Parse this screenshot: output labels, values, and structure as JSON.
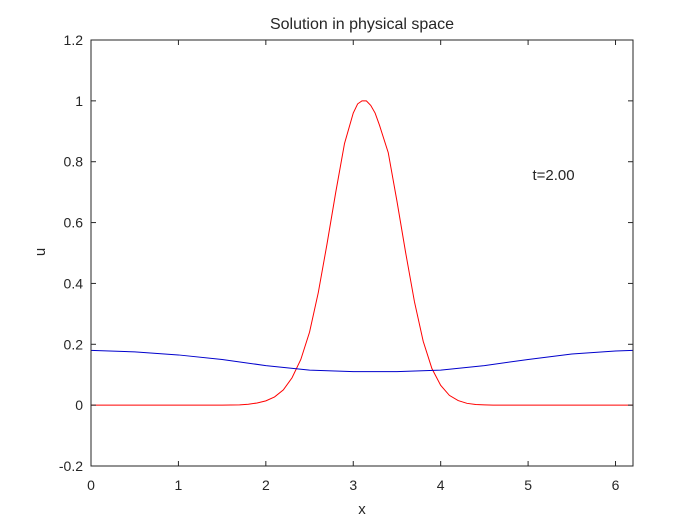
{
  "chart_data": {
    "type": "line",
    "title": "Solution in physical space",
    "xlabel": "x",
    "ylabel": "u",
    "xlim": [
      0,
      6.2
    ],
    "ylim": [
      -0.2,
      1.2
    ],
    "xticks": [
      0,
      1,
      2,
      3,
      4,
      5,
      6
    ],
    "yticks": [
      -0.2,
      0,
      0.2,
      0.4,
      0.6,
      0.8,
      1,
      1.2
    ],
    "xtick_labels": [
      "0",
      "1",
      "2",
      "3",
      "4",
      "5",
      "6"
    ],
    "ytick_labels": [
      "-0.2",
      "0",
      "0.2",
      "0.4",
      "0.6",
      "0.8",
      "1",
      "1.2"
    ],
    "grid": false,
    "annotation": {
      "text": "t=2.00",
      "x": 5.05,
      "y": 0.74
    },
    "series": [
      {
        "color": "#ff0000",
        "x": [
          0,
          0.5,
          1.0,
          1.5,
          1.7,
          1.8,
          1.9,
          2.0,
          2.1,
          2.2,
          2.3,
          2.4,
          2.5,
          2.6,
          2.7,
          2.8,
          2.9,
          3.0,
          3.05,
          3.1,
          3.15,
          3.2,
          3.25,
          3.3,
          3.4,
          3.5,
          3.6,
          3.7,
          3.8,
          3.9,
          4.0,
          4.1,
          4.2,
          4.3,
          4.4,
          4.5,
          4.6,
          4.8,
          5.0,
          5.5,
          6.0,
          6.2
        ],
        "y": [
          0,
          0,
          0,
          0,
          0.001,
          0.003,
          0.007,
          0.014,
          0.027,
          0.05,
          0.09,
          0.15,
          0.24,
          0.37,
          0.53,
          0.7,
          0.86,
          0.96,
          0.99,
          1.0,
          1.0,
          0.985,
          0.96,
          0.92,
          0.83,
          0.67,
          0.5,
          0.34,
          0.21,
          0.12,
          0.065,
          0.032,
          0.015,
          0.006,
          0.002,
          0.001,
          0,
          0,
          0,
          0,
          0,
          0
        ]
      },
      {
        "color": "#0000cc",
        "x": [
          0,
          0.5,
          1.0,
          1.5,
          2.0,
          2.5,
          3.0,
          3.5,
          4.0,
          4.5,
          5.0,
          5.5,
          6.0,
          6.2
        ],
        "y": [
          0.18,
          0.175,
          0.165,
          0.15,
          0.13,
          0.115,
          0.11,
          0.11,
          0.115,
          0.13,
          0.15,
          0.168,
          0.178,
          0.18
        ]
      }
    ]
  }
}
